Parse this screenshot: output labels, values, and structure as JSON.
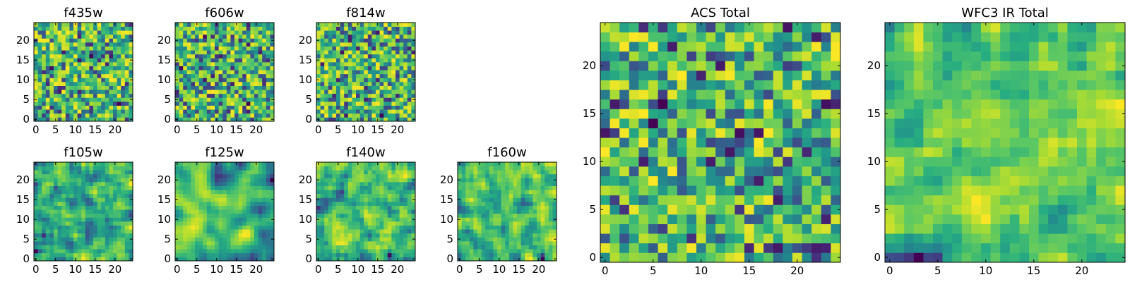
{
  "chart_data": [
    {
      "type": "heatmap",
      "title": "f435w",
      "grid_size": 25,
      "xticks": [
        "0",
        "5",
        "10",
        "15",
        "20"
      ],
      "yticks": [
        "0",
        "5",
        "10",
        "15",
        "20"
      ],
      "smoothness": 0,
      "seed": 11,
      "colormap": "viridis"
    },
    {
      "type": "heatmap",
      "title": "f606w",
      "grid_size": 25,
      "xticks": [
        "0",
        "5",
        "10",
        "15",
        "20"
      ],
      "yticks": [
        "0",
        "5",
        "10",
        "15",
        "20"
      ],
      "smoothness": 0,
      "seed": 23,
      "colormap": "viridis"
    },
    {
      "type": "heatmap",
      "title": "f814w",
      "grid_size": 25,
      "xticks": [
        "0",
        "5",
        "10",
        "15",
        "20"
      ],
      "yticks": [
        "0",
        "5",
        "10",
        "15",
        "20"
      ],
      "smoothness": 0,
      "seed": 37,
      "colormap": "viridis"
    },
    {
      "type": "heatmap",
      "title": "f105w",
      "grid_size": 25,
      "xticks": [
        "0",
        "5",
        "10",
        "15",
        "20"
      ],
      "yticks": [
        "0",
        "5",
        "10",
        "15",
        "20"
      ],
      "smoothness": 1,
      "seed": 41,
      "colormap": "viridis"
    },
    {
      "type": "heatmap",
      "title": "f125w",
      "grid_size": 25,
      "xticks": [
        "0",
        "5",
        "10",
        "15",
        "20"
      ],
      "yticks": [
        "0",
        "5",
        "10",
        "15",
        "20"
      ],
      "smoothness": 2,
      "seed": 53,
      "colormap": "viridis"
    },
    {
      "type": "heatmap",
      "title": "f140w",
      "grid_size": 25,
      "xticks": [
        "0",
        "5",
        "10",
        "15",
        "20"
      ],
      "yticks": [
        "0",
        "5",
        "10",
        "15",
        "20"
      ],
      "smoothness": 1,
      "seed": 67,
      "colormap": "viridis"
    },
    {
      "type": "heatmap",
      "title": "f160w",
      "grid_size": 25,
      "xticks": [
        "0",
        "5",
        "10",
        "15",
        "20"
      ],
      "yticks": [
        "0",
        "5",
        "10",
        "15",
        "20"
      ],
      "smoothness": 1,
      "seed": 79,
      "colormap": "viridis"
    },
    {
      "type": "heatmap",
      "title": "ACS Total",
      "grid_size": 25,
      "xticks": [
        "0",
        "5",
        "10",
        "15",
        "20"
      ],
      "yticks": [
        "0",
        "5",
        "10",
        "15",
        "20"
      ],
      "smoothness": 0,
      "seed": 83,
      "colormap": "viridis"
    },
    {
      "type": "heatmap",
      "title": "WFC3 IR Total",
      "grid_size": 25,
      "xticks": [
        "0",
        "5",
        "10",
        "15",
        "20"
      ],
      "yticks": [
        "0",
        "5",
        "10",
        "15",
        "20"
      ],
      "smoothness": 1,
      "seed": 97,
      "colormap": "viridis"
    }
  ],
  "colors": {
    "viridis_dark": "#440154",
    "viridis_blue": "#31688e",
    "viridis_teal": "#21918c",
    "viridis_green": "#5ec962",
    "viridis_yellow": "#fde725"
  }
}
